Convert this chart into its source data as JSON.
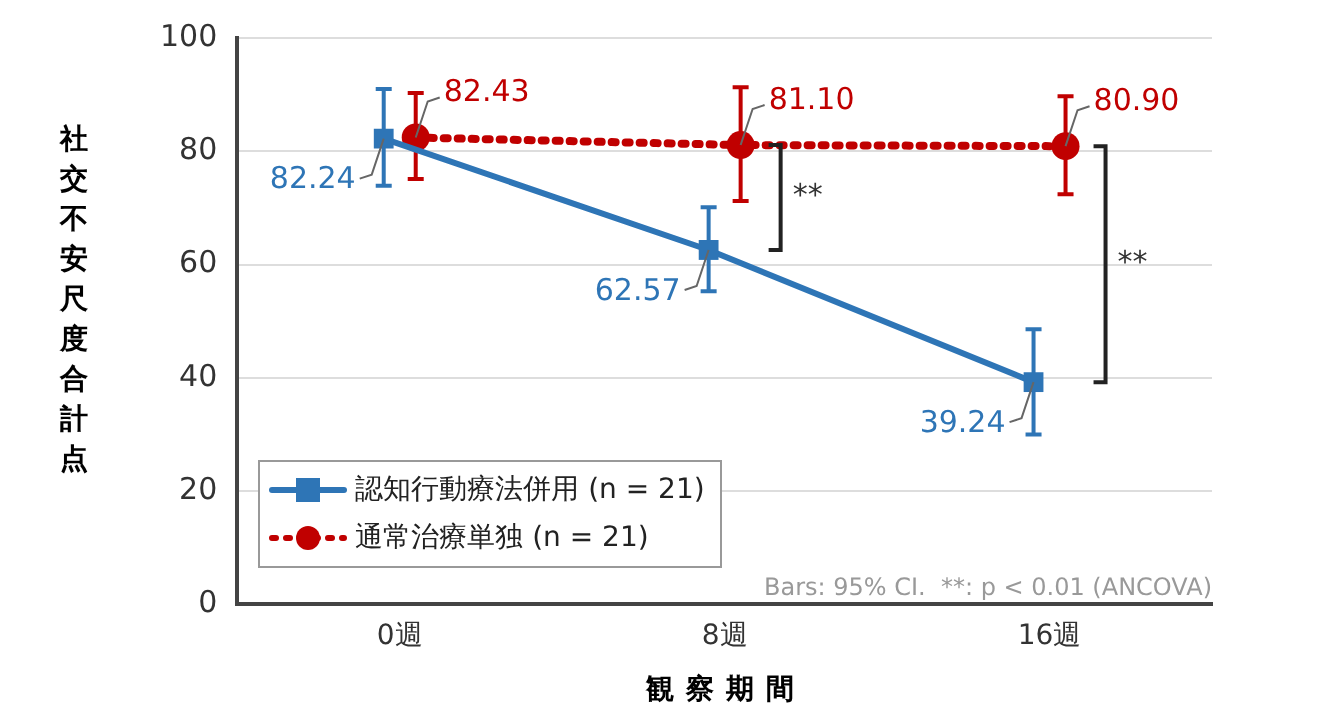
{
  "chart_data": {
    "type": "line",
    "xlabel": "観察期間",
    "ylabel": "社交不安尺度合計点",
    "categories": [
      "0週",
      "8週",
      "16週"
    ],
    "ylim": [
      0,
      100
    ],
    "yticks": [
      0,
      20,
      40,
      60,
      80,
      100
    ],
    "grid": "y",
    "legend": "bottom left",
    "series": [
      {
        "name": "認知行動療法併用 (n = 21)",
        "color": "#2e75b6",
        "marker": "square",
        "line_style": "solid",
        "values": [
          82.24,
          62.57,
          39.24
        ],
        "value_labels": [
          "82.24",
          "62.57",
          "39.24"
        ],
        "errors": [
          [
            73.9,
            91.0
          ],
          [
            55.3,
            70.1
          ],
          [
            30.0,
            48.6
          ]
        ]
      },
      {
        "name": "通常治療単独 (n = 21)",
        "color": "#c00000",
        "marker": "circle",
        "line_style": "dotted",
        "values": [
          82.43,
          81.1,
          80.9
        ],
        "value_labels": [
          "82.43",
          "81.10",
          "80.90"
        ],
        "errors": [
          [
            75.1,
            90.3
          ],
          [
            71.2,
            91.3
          ],
          [
            72.4,
            89.7
          ]
        ]
      }
    ],
    "annotations": [
      "**",
      "**",
      "Bars: 95% CI.  **: p < 0.01 (ANCOVA)"
    ]
  }
}
